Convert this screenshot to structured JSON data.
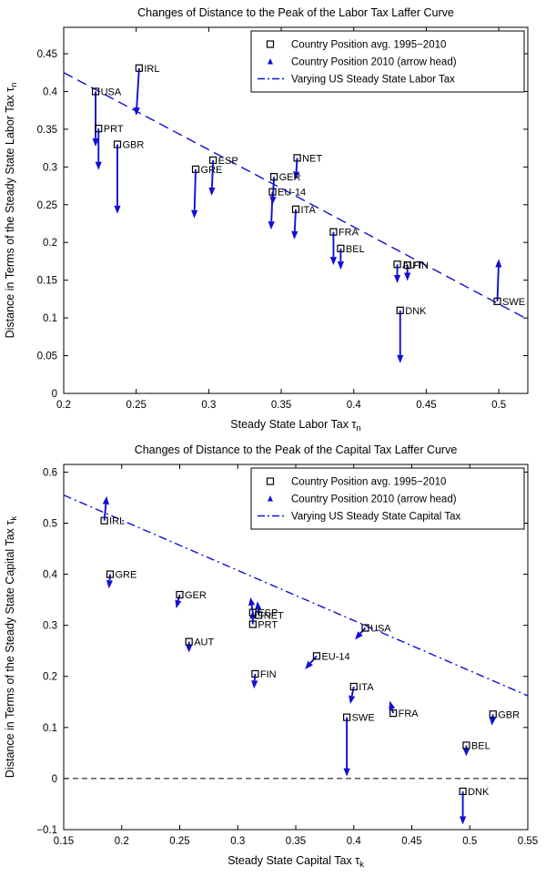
{
  "colors": {
    "blue": "#0f0fd6",
    "axis": "#000000",
    "background": "#ffffff"
  },
  "chart_data": [
    {
      "type": "scatter",
      "title": "Changes of Distance to the Peak of the Labor Tax Laffer Curve",
      "xlabel": {
        "text": "Steady State Labor Tax ",
        "sym": "τ",
        "sub": "n"
      },
      "ylabel": {
        "text": "Distance in Terms of the Steady State Labor Tax ",
        "sym": "τ",
        "sub": "n"
      },
      "xlim": [
        0.2,
        0.52
      ],
      "ylim": [
        0,
        0.485
      ],
      "xticks": [
        {
          "v": 0.2,
          "label": "0.2"
        },
        {
          "v": 0.25,
          "label": "0.25"
        },
        {
          "v": 0.3,
          "label": "0.3"
        },
        {
          "v": 0.35,
          "label": "0.35"
        },
        {
          "v": 0.4,
          "label": "0.4"
        },
        {
          "v": 0.45,
          "label": "0.45"
        },
        {
          "v": 0.5,
          "label": "0.5"
        }
      ],
      "yticks": [
        {
          "v": 0,
          "label": "0"
        },
        {
          "v": 0.05,
          "label": "0.05"
        },
        {
          "v": 0.1,
          "label": "0.1"
        },
        {
          "v": 0.15,
          "label": "0.15"
        },
        {
          "v": 0.2,
          "label": "0.2"
        },
        {
          "v": 0.25,
          "label": "0.25"
        },
        {
          "v": 0.3,
          "label": "0.3"
        },
        {
          "v": 0.35,
          "label": "0.35"
        },
        {
          "v": 0.4,
          "label": "0.4"
        },
        {
          "v": 0.45,
          "label": "0.45"
        }
      ],
      "legend": [
        {
          "symbol": "square",
          "label": "Country Position avg. 1995−2010"
        },
        {
          "symbol": "arrowhead",
          "label": "Country Position 2010 (arrow head)"
        },
        {
          "symbol": "line",
          "label": "Varying US Steady State Labor Tax"
        }
      ],
      "us_line": {
        "x1": 0.2,
        "y1": 0.425,
        "x2": 0.52,
        "y2": 0.098,
        "style": "dashed"
      },
      "zero_line": false,
      "points": [
        {
          "label": "USA",
          "x": 0.222,
          "y": 0.4,
          "x2": 0.222,
          "y2": 0.327
        },
        {
          "label": "IRL",
          "x": 0.252,
          "y": 0.431,
          "x2": 0.25,
          "y2": 0.368
        },
        {
          "label": "PRT",
          "x": 0.224,
          "y": 0.351,
          "x2": 0.224,
          "y2": 0.296
        },
        {
          "label": "GBR",
          "x": 0.237,
          "y": 0.33,
          "x2": 0.237,
          "y2": 0.238
        },
        {
          "label": "GRE",
          "x": 0.291,
          "y": 0.297,
          "x2": 0.29,
          "y2": 0.232
        },
        {
          "label": "ESP",
          "x": 0.303,
          "y": 0.309,
          "x2": 0.302,
          "y2": 0.262
        },
        {
          "label": "NET",
          "x": 0.361,
          "y": 0.312,
          "x2": 0.36,
          "y2": 0.283
        },
        {
          "label": "GER",
          "x": 0.345,
          "y": 0.287,
          "x2": 0.344,
          "y2": 0.25
        },
        {
          "label": "EU-14",
          "x": 0.344,
          "y": 0.267,
          "x2": 0.343,
          "y2": 0.217
        },
        {
          "label": "ITA",
          "x": 0.36,
          "y": 0.244,
          "x2": 0.359,
          "y2": 0.204
        },
        {
          "label": "FRA",
          "x": 0.386,
          "y": 0.214,
          "x2": 0.386,
          "y2": 0.17
        },
        {
          "label": "BEL",
          "x": 0.391,
          "y": 0.192,
          "x2": 0.391,
          "y2": 0.164
        },
        {
          "label": "AUT",
          "x": 0.43,
          "y": 0.171,
          "x2": 0.43,
          "y2": 0.146
        },
        {
          "label": "FIN",
          "x": 0.437,
          "y": 0.17,
          "x2": 0.437,
          "y2": 0.149
        },
        {
          "label": "DNK",
          "x": 0.432,
          "y": 0.11,
          "x2": 0.432,
          "y2": 0.04
        },
        {
          "label": "SWE",
          "x": 0.499,
          "y": 0.122,
          "x2": 0.5,
          "y2": 0.178
        }
      ]
    },
    {
      "type": "scatter",
      "title": "Changes of Distance to the Peak of the Capital Tax Laffer Curve",
      "xlabel": {
        "text": "Steady State Capital Tax ",
        "sym": "τ",
        "sub": "k"
      },
      "ylabel": {
        "text": "Distance in Terms of the Steady State Capital Tax ",
        "sym": "τ",
        "sub": "k"
      },
      "xlim": [
        0.15,
        0.55
      ],
      "ylim": [
        -0.1,
        0.615
      ],
      "xticks": [
        {
          "v": 0.15,
          "label": "0.15"
        },
        {
          "v": 0.2,
          "label": "0.2"
        },
        {
          "v": 0.25,
          "label": "0.25"
        },
        {
          "v": 0.3,
          "label": "0.3"
        },
        {
          "v": 0.35,
          "label": "0.35"
        },
        {
          "v": 0.4,
          "label": "0.4"
        },
        {
          "v": 0.45,
          "label": "0.45"
        },
        {
          "v": 0.5,
          "label": "0.5"
        },
        {
          "v": 0.55,
          "label": "0.55"
        }
      ],
      "yticks": [
        {
          "v": -0.1,
          "label": "−0.1"
        },
        {
          "v": 0,
          "label": "0"
        },
        {
          "v": 0.1,
          "label": "0.1"
        },
        {
          "v": 0.2,
          "label": "0.2"
        },
        {
          "v": 0.3,
          "label": "0.3"
        },
        {
          "v": 0.4,
          "label": "0.4"
        },
        {
          "v": 0.5,
          "label": "0.5"
        },
        {
          "v": 0.6,
          "label": "0.6"
        }
      ],
      "legend": [
        {
          "symbol": "square",
          "label": "Country Position avg. 1995−2010"
        },
        {
          "symbol": "arrowhead",
          "label": "Country Position 2010 (arrow head)"
        },
        {
          "symbol": "line",
          "label": "Varying US Steady State Capital Tax"
        }
      ],
      "us_line": {
        "x1": 0.15,
        "y1": 0.555,
        "x2": 0.55,
        "y2": 0.162,
        "style": "dashdot"
      },
      "zero_line": true,
      "points": [
        {
          "label": "IRL",
          "x": 0.185,
          "y": 0.505,
          "x2": 0.187,
          "y2": 0.553
        },
        {
          "label": "GRE",
          "x": 0.19,
          "y": 0.4,
          "x2": 0.189,
          "y2": 0.372
        },
        {
          "label": "GER",
          "x": 0.25,
          "y": 0.36,
          "x2": 0.247,
          "y2": 0.333
        },
        {
          "label": "AUT",
          "x": 0.258,
          "y": 0.268,
          "x2": 0.258,
          "y2": 0.247
        },
        {
          "label": "ESP",
          "x": 0.313,
          "y": 0.325,
          "x2": 0.311,
          "y2": 0.355
        },
        {
          "label": "NET",
          "x": 0.318,
          "y": 0.32,
          "x2": 0.317,
          "y2": 0.347
        },
        {
          "label": "PRT",
          "x": 0.313,
          "y": 0.302,
          "x2": 0.313,
          "y2": 0.329
        },
        {
          "label": "FIN",
          "x": 0.315,
          "y": 0.205,
          "x2": 0.314,
          "y2": 0.176
        },
        {
          "label": "EU-14",
          "x": 0.368,
          "y": 0.24,
          "x2": 0.358,
          "y2": 0.214
        },
        {
          "label": "USA",
          "x": 0.41,
          "y": 0.295,
          "x2": 0.401,
          "y2": 0.272
        },
        {
          "label": "ITA",
          "x": 0.4,
          "y": 0.18,
          "x2": 0.397,
          "y2": 0.146
        },
        {
          "label": "SWE",
          "x": 0.394,
          "y": 0.12,
          "x2": 0.394,
          "y2": 0.004
        },
        {
          "label": "FRA",
          "x": 0.434,
          "y": 0.128,
          "x2": 0.431,
          "y2": 0.152
        },
        {
          "label": "GBR",
          "x": 0.52,
          "y": 0.126,
          "x2": 0.519,
          "y2": 0.104
        },
        {
          "label": "BEL",
          "x": 0.497,
          "y": 0.065,
          "x2": 0.497,
          "y2": 0.044
        },
        {
          "label": "DNK",
          "x": 0.494,
          "y": -0.025,
          "x2": 0.494,
          "y2": -0.09
        }
      ]
    }
  ]
}
